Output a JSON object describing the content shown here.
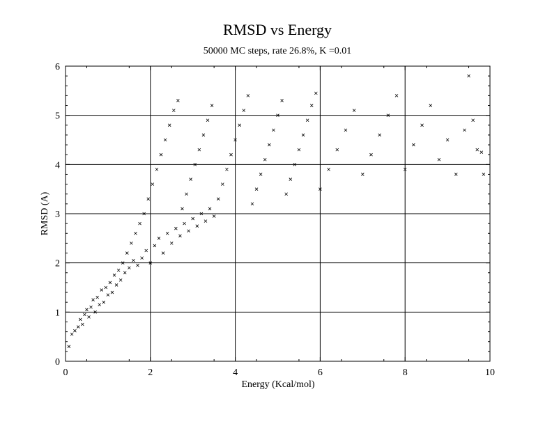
{
  "chart_data": {
    "type": "scatter",
    "title": "RMSD vs Energy",
    "subtitle": "50000 MC steps, rate 26.8%, K =0.01",
    "xlabel": "Energy (Kcal/mol)",
    "ylabel": "RMSD (A)",
    "xlim": [
      0,
      10
    ],
    "ylim": [
      0,
      6
    ],
    "xticks": [
      "0",
      "2",
      "4",
      "6",
      "8",
      "10"
    ],
    "yticks": [
      "0",
      "1",
      "2",
      "3",
      "4",
      "5",
      "6"
    ],
    "grid": true,
    "marker": "x",
    "marker_color": "#000000",
    "series": [
      {
        "points": [
          [
            0.08,
            0.3
          ],
          [
            0.15,
            0.55
          ],
          [
            0.22,
            0.62
          ],
          [
            0.3,
            0.7
          ],
          [
            0.35,
            0.85
          ],
          [
            0.4,
            0.75
          ],
          [
            0.45,
            0.95
          ],
          [
            0.5,
            1.05
          ],
          [
            0.55,
            0.9
          ],
          [
            0.6,
            1.1
          ],
          [
            0.65,
            1.25
          ],
          [
            0.7,
            1.0
          ],
          [
            0.75,
            1.3
          ],
          [
            0.8,
            1.15
          ],
          [
            0.85,
            1.45
          ],
          [
            0.9,
            1.2
          ],
          [
            0.95,
            1.5
          ],
          [
            1.0,
            1.35
          ],
          [
            1.05,
            1.6
          ],
          [
            1.1,
            1.4
          ],
          [
            1.15,
            1.75
          ],
          [
            1.2,
            1.55
          ],
          [
            1.25,
            1.85
          ],
          [
            1.3,
            1.65
          ],
          [
            1.35,
            2.0
          ],
          [
            1.4,
            1.8
          ],
          [
            1.45,
            2.2
          ],
          [
            1.5,
            1.9
          ],
          [
            1.55,
            2.4
          ],
          [
            1.6,
            2.05
          ],
          [
            1.65,
            2.6
          ],
          [
            1.7,
            1.95
          ],
          [
            1.75,
            2.8
          ],
          [
            1.8,
            2.1
          ],
          [
            1.85,
            3.0
          ],
          [
            1.9,
            2.25
          ],
          [
            1.95,
            3.3
          ],
          [
            2.0,
            2.0
          ],
          [
            2.05,
            3.6
          ],
          [
            2.1,
            2.35
          ],
          [
            2.15,
            3.9
          ],
          [
            2.2,
            2.5
          ],
          [
            2.25,
            4.2
          ],
          [
            2.3,
            2.2
          ],
          [
            2.35,
            4.5
          ],
          [
            2.4,
            2.6
          ],
          [
            2.45,
            4.8
          ],
          [
            2.5,
            2.4
          ],
          [
            2.55,
            5.1
          ],
          [
            2.6,
            2.7
          ],
          [
            2.65,
            5.3
          ],
          [
            2.7,
            2.55
          ],
          [
            2.75,
            3.1
          ],
          [
            2.8,
            2.8
          ],
          [
            2.85,
            3.4
          ],
          [
            2.9,
            2.65
          ],
          [
            2.95,
            3.7
          ],
          [
            3.0,
            2.9
          ],
          [
            3.05,
            4.0
          ],
          [
            3.1,
            2.75
          ],
          [
            3.15,
            4.3
          ],
          [
            3.2,
            3.0
          ],
          [
            3.25,
            4.6
          ],
          [
            3.3,
            2.85
          ],
          [
            3.35,
            4.9
          ],
          [
            3.4,
            3.1
          ],
          [
            3.45,
            5.2
          ],
          [
            3.5,
            2.95
          ],
          [
            3.6,
            3.3
          ],
          [
            3.7,
            3.6
          ],
          [
            3.8,
            3.9
          ],
          [
            3.9,
            4.2
          ],
          [
            4.0,
            4.5
          ],
          [
            4.1,
            4.8
          ],
          [
            4.2,
            5.1
          ],
          [
            4.3,
            5.4
          ],
          [
            4.4,
            3.2
          ],
          [
            4.5,
            3.5
          ],
          [
            4.6,
            3.8
          ],
          [
            4.7,
            4.1
          ],
          [
            4.8,
            4.4
          ],
          [
            4.9,
            4.7
          ],
          [
            5.0,
            5.0
          ],
          [
            5.1,
            5.3
          ],
          [
            5.2,
            3.4
          ],
          [
            5.3,
            3.7
          ],
          [
            5.4,
            4.0
          ],
          [
            5.5,
            4.3
          ],
          [
            5.6,
            4.6
          ],
          [
            5.7,
            4.9
          ],
          [
            5.8,
            5.2
          ],
          [
            5.9,
            5.45
          ],
          [
            6.0,
            3.5
          ],
          [
            6.2,
            3.9
          ],
          [
            6.4,
            4.3
          ],
          [
            6.6,
            4.7
          ],
          [
            6.8,
            5.1
          ],
          [
            7.0,
            3.8
          ],
          [
            7.2,
            4.2
          ],
          [
            7.4,
            4.6
          ],
          [
            7.6,
            5.0
          ],
          [
            7.8,
            5.4
          ],
          [
            8.0,
            3.9
          ],
          [
            8.2,
            4.4
          ],
          [
            8.4,
            4.8
          ],
          [
            8.6,
            5.2
          ],
          [
            8.8,
            4.1
          ],
          [
            9.0,
            4.5
          ],
          [
            9.2,
            3.8
          ],
          [
            9.4,
            4.7
          ],
          [
            9.5,
            5.8
          ],
          [
            9.6,
            4.9
          ],
          [
            9.7,
            4.3
          ],
          [
            9.8,
            4.25
          ],
          [
            9.85,
            3.8
          ]
        ]
      }
    ]
  }
}
